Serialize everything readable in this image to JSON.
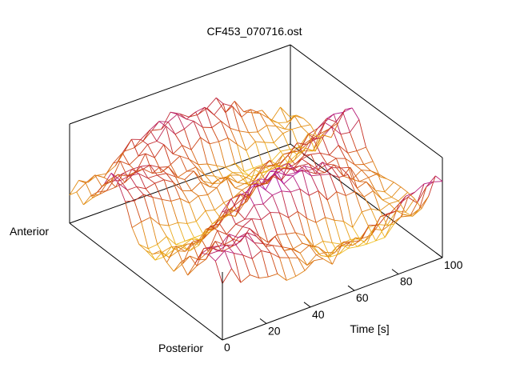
{
  "chart_data": {
    "type": "surface",
    "title": "CF453_070716.ost",
    "x_axis": {
      "label": "Time [s]",
      "range": [
        0,
        100
      ],
      "ticks": [
        "0",
        "20",
        "40",
        "60",
        "80",
        "100"
      ]
    },
    "y_axis": {
      "start_label": "Anterior",
      "end_label": "Posterior"
    },
    "z_axis": {
      "label": "",
      "ticks": []
    },
    "grid": false,
    "legend": "none",
    "colormap": [
      "#7b10ff",
      "#b0159b",
      "#c8321a",
      "#dd7a10",
      "#f0c020"
    ],
    "surface": {
      "time_samples": 24,
      "position_samples": 22,
      "note_visible": "wireframe mesh colored by height"
    }
  }
}
